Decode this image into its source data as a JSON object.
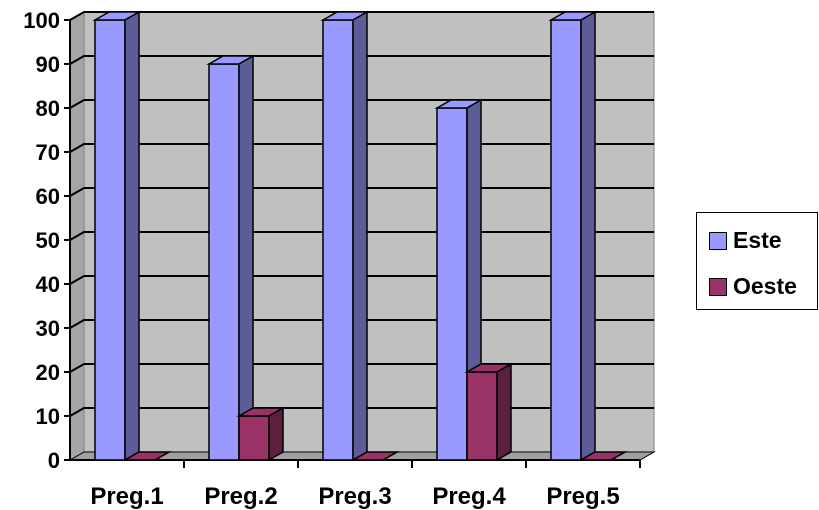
{
  "chart_data": {
    "type": "bar",
    "title": "",
    "xlabel": "",
    "ylabel": "",
    "categories": [
      "Preg.1",
      "Preg.2",
      "Preg.3",
      "Preg.4",
      "Preg.5"
    ],
    "series": [
      {
        "name": "Este",
        "values": [
          100,
          90,
          100,
          80,
          100
        ]
      },
      {
        "name": "Oeste",
        "values": [
          0,
          10,
          0,
          20,
          0
        ]
      }
    ],
    "y_ticks": [
      "0",
      "10",
      "20",
      "30",
      "40",
      "50",
      "60",
      "70",
      "80",
      "90",
      "100"
    ],
    "ylim": [
      0,
      100
    ],
    "grid": true,
    "three_d": true,
    "legend_position": "right",
    "colors": {
      "este_front": "#9999ff",
      "este_side": "#5c5c99",
      "oeste_front": "#993366",
      "oeste_side": "#5c1f3d",
      "plot_back": "#c0c0c0",
      "floor": "#a0a0a0"
    }
  }
}
